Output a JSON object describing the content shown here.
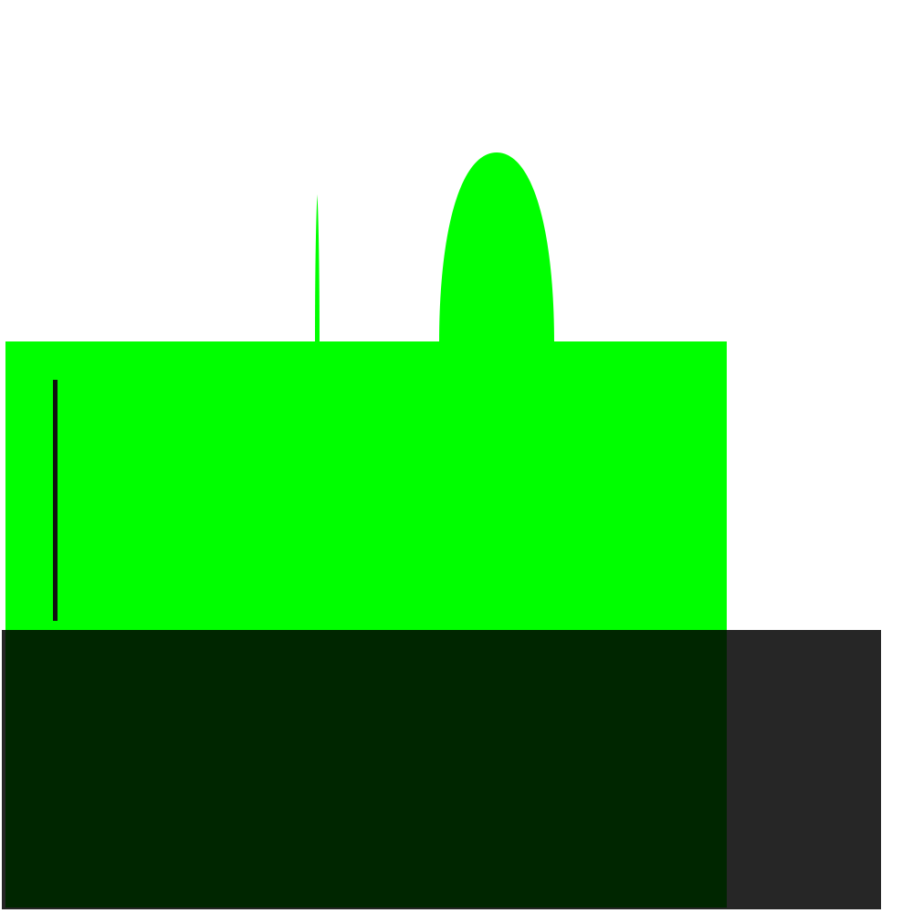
{
  "scene": {
    "colors": {
      "background": "#ffffff",
      "green": "#00ff00",
      "overlay": "#000000",
      "overlay_opacity": 0.85,
      "marker": "#111111"
    },
    "shapes": [
      "green-rectangle",
      "green-dome",
      "green-spike",
      "black-vertical-line",
      "dark-translucent-rectangle"
    ]
  }
}
